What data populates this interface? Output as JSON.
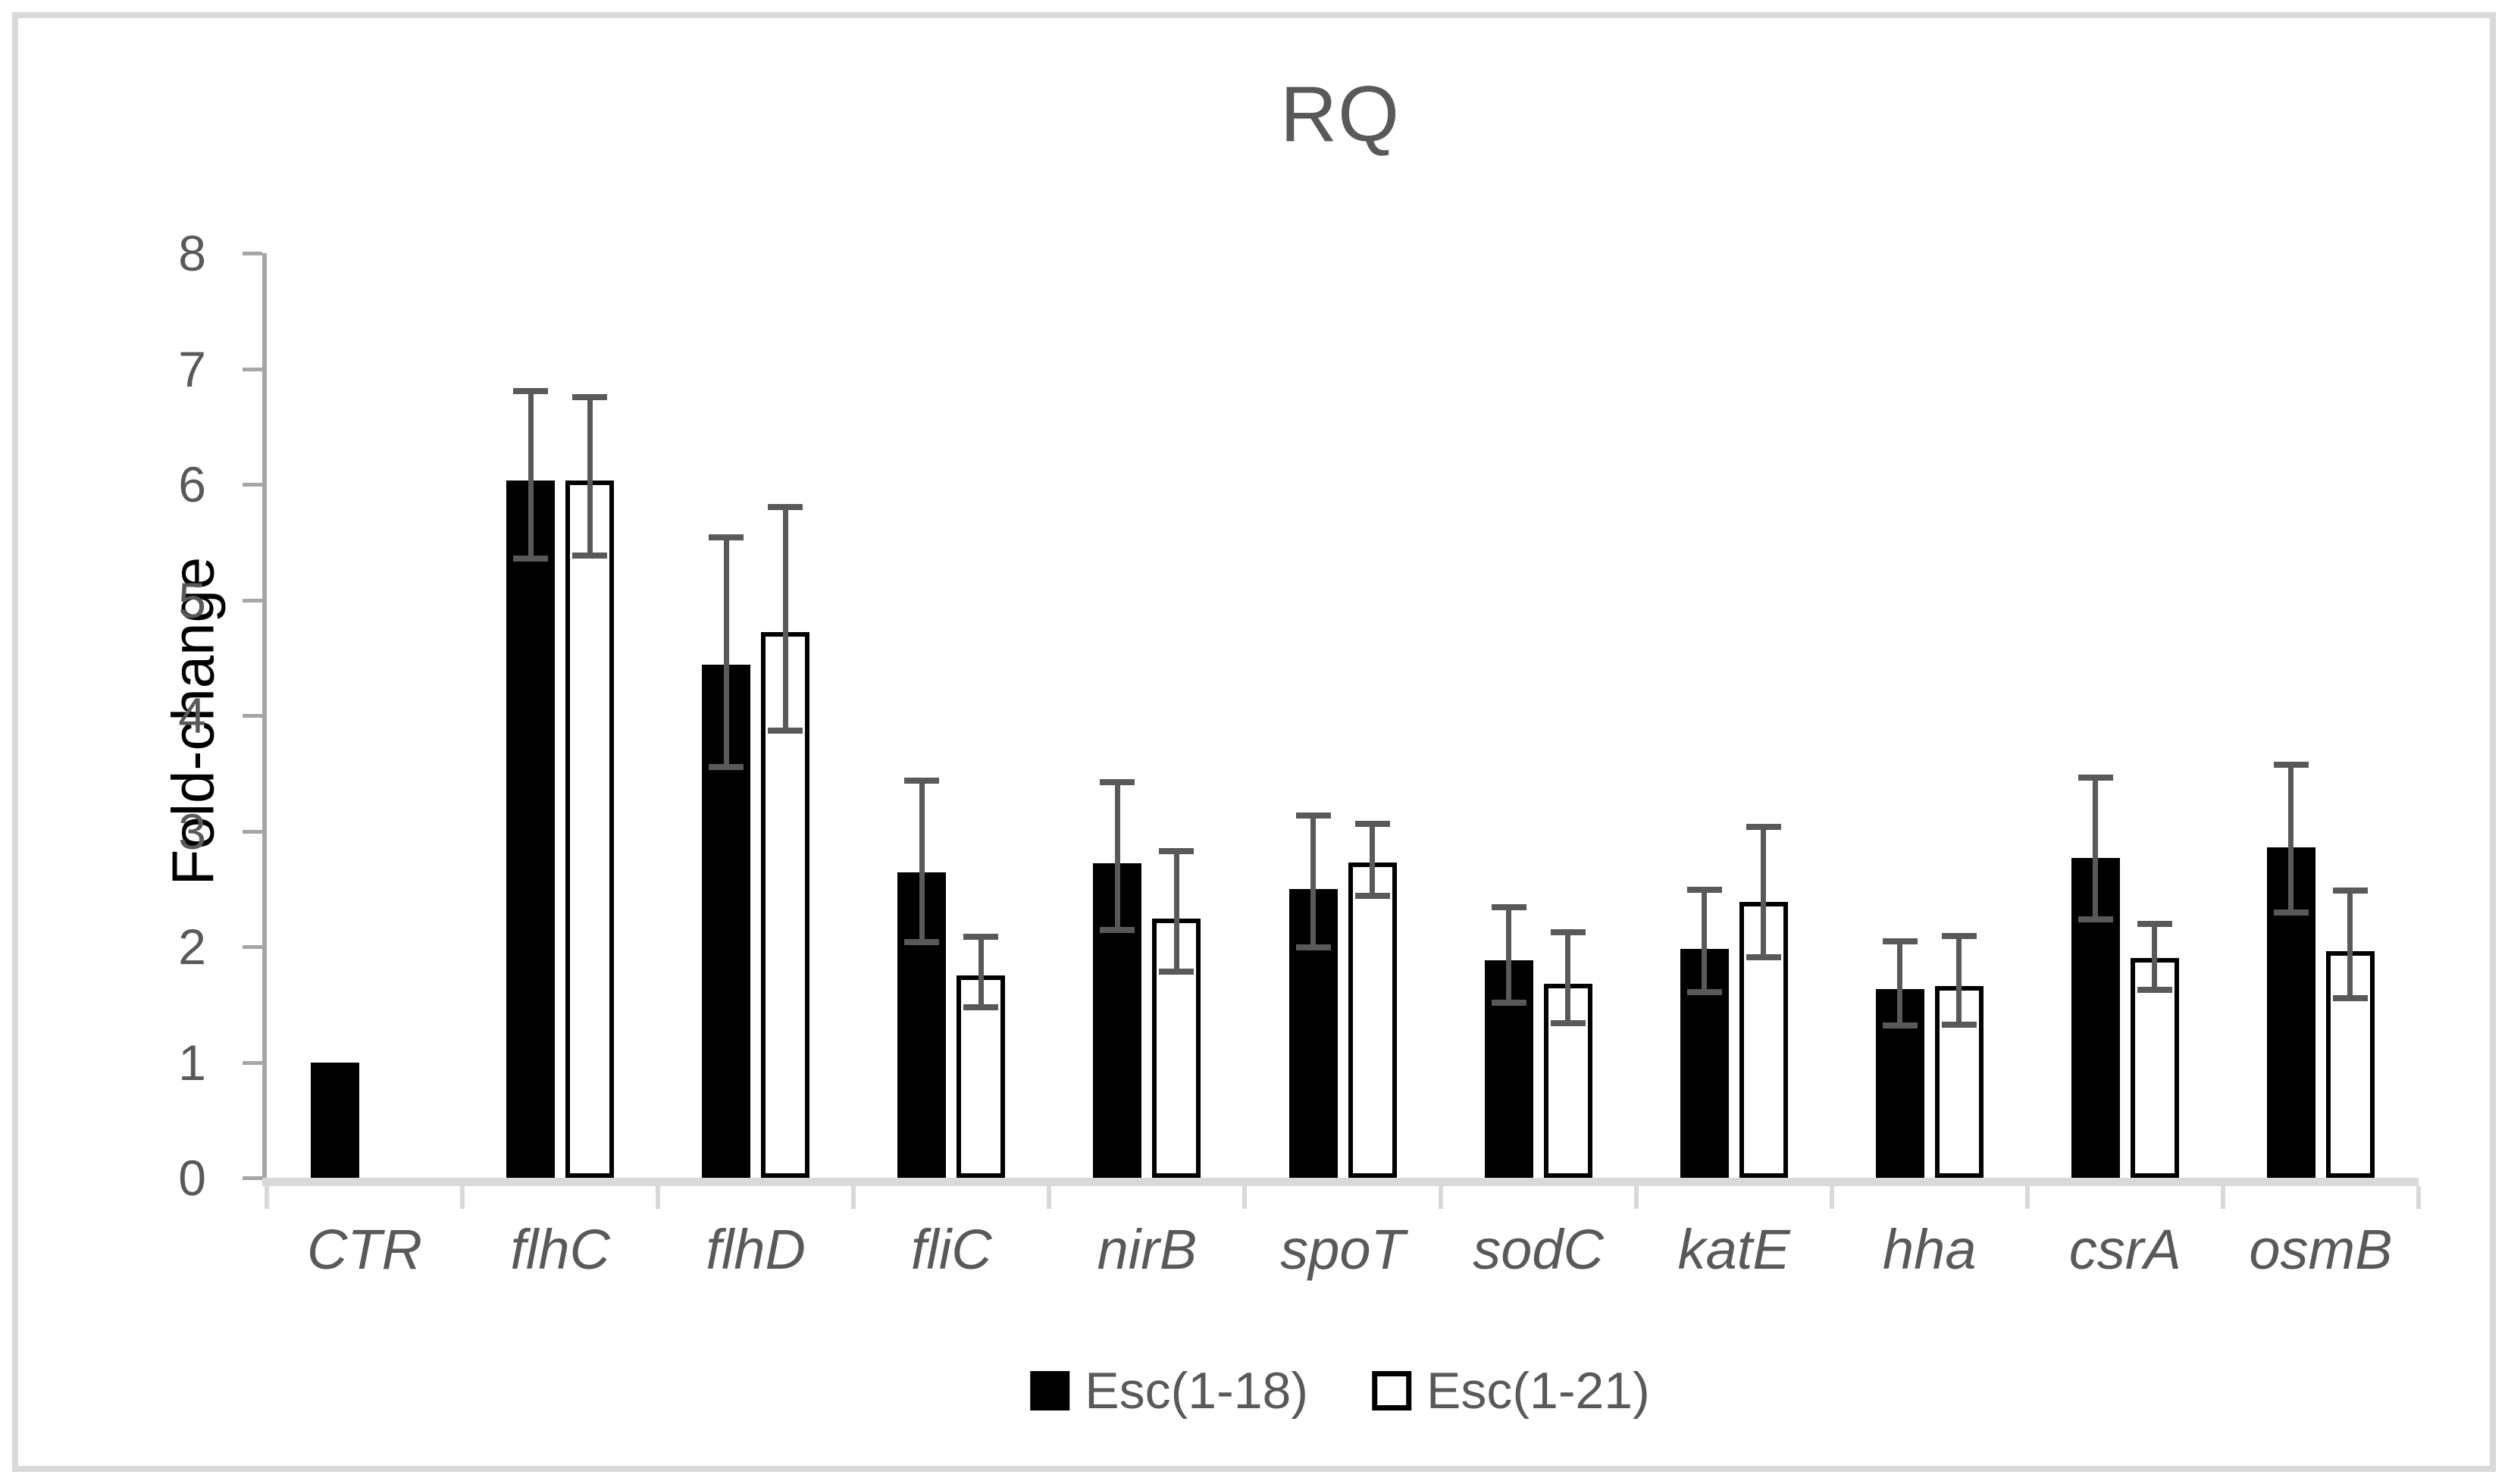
{
  "chart_data": {
    "type": "bar",
    "title": "RQ",
    "ylabel": "Fold-change",
    "xlabel": "",
    "ylim": [
      0,
      8
    ],
    "yticks": [
      0,
      1,
      2,
      3,
      4,
      5,
      6,
      7,
      8
    ],
    "grid": false,
    "legend_position": "bottom",
    "categories": [
      "CTR",
      "flhC",
      "flhD",
      "fliC",
      "nirB",
      "spoT",
      "sodC",
      "katE",
      "hha",
      "csrA",
      "osmB"
    ],
    "series": [
      {
        "name": "Esc(1-18)",
        "swatch": "black",
        "values": [
          1.0,
          6.03,
          4.44,
          2.64,
          2.72,
          2.5,
          1.88,
          1.98,
          1.63,
          2.77,
          2.86
        ],
        "err_hi": [
          null,
          6.83,
          5.57,
          3.46,
          3.45,
          3.16,
          2.37,
          2.52,
          2.07,
          3.49,
          3.6
        ],
        "err_lo": [
          null,
          5.33,
          3.53,
          2.01,
          2.12,
          1.97,
          1.49,
          1.58,
          1.29,
          2.21,
          2.27
        ]
      },
      {
        "name": "Esc(1-21)",
        "swatch": "white",
        "values": [
          null,
          6.03,
          4.72,
          1.75,
          2.24,
          2.73,
          1.68,
          2.39,
          1.66,
          1.9,
          1.96
        ],
        "err_hi": [
          null,
          6.78,
          5.83,
          2.11,
          2.85,
          3.09,
          2.15,
          3.06,
          2.12,
          2.22,
          2.51
        ],
        "err_lo": [
          null,
          5.36,
          3.84,
          1.45,
          1.76,
          2.41,
          1.31,
          1.88,
          1.3,
          1.6,
          1.53
        ]
      }
    ],
    "colors": {
      "bar_fill_series1": "#000000",
      "bar_fill_series2": "#ffffff",
      "bar_border_series2": "#000000",
      "error_bar": "#595959",
      "axis_text": "#595959",
      "y_axis_line": "#a6a6a6",
      "x_axis_line": "#d9d9d9",
      "title_text": "#595959",
      "y_title_text": "#000000",
      "figure_border": "#d9d9d9"
    }
  }
}
